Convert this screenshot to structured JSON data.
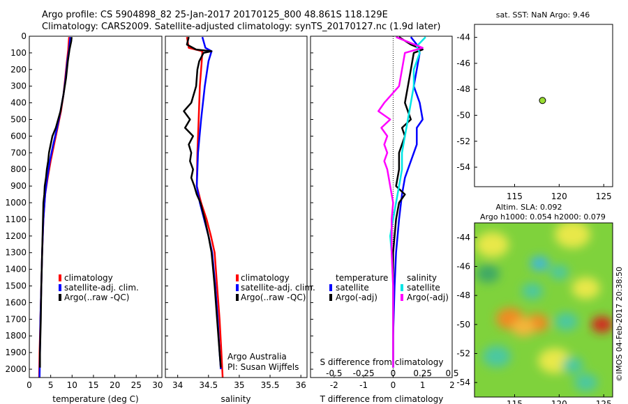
{
  "header": {
    "line1": "Argo profile: CS 5904898_82 25-Jan-2017 20170125_800 48.861S 118.129E",
    "line2": "Climatology: CARS2009. Satellite-adjusted climatology: synTS_20170127.nc (1.9d later)"
  },
  "colors": {
    "climatology": "#ff0000",
    "satellite": "#0000ff",
    "argo": "#000000",
    "sat_temp": "#00e5e5",
    "argo_sal": "#ff00ff",
    "dot": "#99dd33"
  },
  "chart_data": [
    {
      "id": "temperature",
      "type": "line",
      "xlabel": "temperature (deg C)",
      "ylabel": "",
      "xlim": [
        0,
        31
      ],
      "ylim": [
        2050,
        0
      ],
      "xticks": [
        "0",
        "5",
        "10",
        "15",
        "20",
        "25",
        "30"
      ],
      "yticks": [
        "0",
        "100",
        "200",
        "300",
        "400",
        "500",
        "600",
        "700",
        "800",
        "900",
        "1000",
        "1100",
        "1200",
        "1300",
        "1400",
        "1500",
        "1600",
        "1700",
        "1800",
        "1900",
        "2000"
      ],
      "legend": [
        "climatology",
        "satellite-adj. clim.",
        "Argo(..raw -QC)"
      ],
      "series": [
        {
          "name": "climatology",
          "color": "#ff0000",
          "points": [
            [
              9.3,
              5
            ],
            [
              9.1,
              80
            ],
            [
              8.8,
              150
            ],
            [
              8.4,
              250
            ],
            [
              8.0,
              350
            ],
            [
              7.4,
              450
            ],
            [
              6.6,
              550
            ],
            [
              5.8,
              650
            ],
            [
              5.0,
              750
            ],
            [
              4.3,
              850
            ],
            [
              3.7,
              950
            ],
            [
              3.3,
              1100
            ],
            [
              3.0,
              1300
            ],
            [
              2.8,
              1500
            ],
            [
              2.6,
              1700
            ],
            [
              2.4,
              1900
            ],
            [
              2.3,
              2050
            ]
          ]
        },
        {
          "name": "satellite-adj. clim.",
          "color": "#0000ff",
          "points": [
            [
              9.6,
              5
            ],
            [
              9.3,
              80
            ],
            [
              8.9,
              150
            ],
            [
              8.5,
              250
            ],
            [
              8.0,
              350
            ],
            [
              7.3,
              450
            ],
            [
              6.5,
              550
            ],
            [
              5.6,
              650
            ],
            [
              4.8,
              750
            ],
            [
              4.2,
              850
            ],
            [
              3.7,
              950
            ],
            [
              3.3,
              1100
            ],
            [
              3.0,
              1300
            ],
            [
              2.8,
              1500
            ],
            [
              2.6,
              1700
            ],
            [
              2.5,
              1900
            ],
            [
              2.4,
              2050
            ]
          ]
        },
        {
          "name": "Argo(..raw -QC)",
          "color": "#000000",
          "points": [
            [
              9.9,
              5
            ],
            [
              9.8,
              30
            ],
            [
              9.4,
              80
            ],
            [
              9.0,
              150
            ],
            [
              8.6,
              250
            ],
            [
              8.0,
              350
            ],
            [
              7.3,
              450
            ],
            [
              6.2,
              550
            ],
            [
              5.4,
              600
            ],
            [
              5.0,
              650
            ],
            [
              4.6,
              700
            ],
            [
              4.4,
              750
            ],
            [
              4.1,
              800
            ],
            [
              3.9,
              850
            ],
            [
              3.6,
              900
            ],
            [
              3.5,
              950
            ],
            [
              3.3,
              1000
            ],
            [
              3.2,
              1100
            ],
            [
              3.0,
              1300
            ],
            [
              2.8,
              1500
            ],
            [
              2.7,
              1700
            ],
            [
              2.5,
              1900
            ],
            [
              2.5,
              1990
            ]
          ]
        }
      ]
    },
    {
      "id": "salinity",
      "type": "line",
      "xlabel": "salinity",
      "ylabel": "",
      "xlim": [
        33.8,
        36.1
      ],
      "ylim": [
        2050,
        0
      ],
      "xticks": [
        "34",
        "34.5",
        "35",
        "35.5",
        "36"
      ],
      "legend": [
        "climatology",
        "satellite-adj. clim.",
        "Argo(..raw -QC)"
      ],
      "annotation": [
        "Argo Australia",
        "PI: Susan Wijffels"
      ],
      "series": [
        {
          "name": "climatology",
          "color": "#ff0000",
          "points": [
            [
              34.15,
              5
            ],
            [
              34.18,
              70
            ],
            [
              34.4,
              90
            ],
            [
              34.39,
              150
            ],
            [
              34.36,
              300
            ],
            [
              34.34,
              500
            ],
            [
              34.32,
              700
            ],
            [
              34.31,
              900
            ],
            [
              34.38,
              1000
            ],
            [
              34.47,
              1100
            ],
            [
              34.54,
              1200
            ],
            [
              34.6,
              1300
            ],
            [
              34.64,
              1500
            ],
            [
              34.68,
              1700
            ],
            [
              34.71,
              1900
            ],
            [
              34.73,
              2050
            ]
          ]
        },
        {
          "name": "satellite-adj. clim.",
          "color": "#0000ff",
          "points": [
            [
              34.4,
              5
            ],
            [
              34.45,
              70
            ],
            [
              34.55,
              90
            ],
            [
              34.5,
              150
            ],
            [
              34.44,
              300
            ],
            [
              34.38,
              500
            ],
            [
              34.33,
              700
            ],
            [
              34.31,
              900
            ],
            [
              34.36,
              1000
            ],
            [
              34.43,
              1100
            ],
            [
              34.5,
              1200
            ],
            [
              34.56,
              1300
            ],
            [
              34.61,
              1500
            ],
            [
              34.65,
              1700
            ],
            [
              34.68,
              1900
            ],
            [
              34.7,
              2000
            ]
          ]
        },
        {
          "name": "Argo(..raw -QC)",
          "color": "#000000",
          "points": [
            [
              34.18,
              5
            ],
            [
              34.15,
              50
            ],
            [
              34.3,
              80
            ],
            [
              34.55,
              90
            ],
            [
              34.42,
              100
            ],
            [
              34.35,
              150
            ],
            [
              34.32,
              200
            ],
            [
              34.3,
              300
            ],
            [
              34.22,
              400
            ],
            [
              34.1,
              450
            ],
            [
              34.2,
              500
            ],
            [
              34.12,
              550
            ],
            [
              34.25,
              600
            ],
            [
              34.18,
              650
            ],
            [
              34.22,
              700
            ],
            [
              34.2,
              750
            ],
            [
              34.25,
              800
            ],
            [
              34.22,
              850
            ],
            [
              34.27,
              900
            ],
            [
              34.31,
              950
            ],
            [
              34.37,
              1000
            ],
            [
              34.44,
              1100
            ],
            [
              34.5,
              1200
            ],
            [
              34.55,
              1300
            ],
            [
              34.6,
              1500
            ],
            [
              34.64,
              1700
            ],
            [
              34.68,
              1900
            ],
            [
              34.7,
              1990
            ]
          ]
        }
      ]
    },
    {
      "id": "difference",
      "type": "line",
      "xlabel": "T difference from climatology",
      "xlabel2": "S difference from climatology",
      "xlim": [
        -2.8,
        2.0
      ],
      "x2lim": [
        -0.7,
        0.5
      ],
      "ylim": [
        2050,
        0
      ],
      "xticks": [
        "-2",
        "-1",
        "0",
        "1",
        "2"
      ],
      "x2ticks": [
        "-0.5",
        "-0.25",
        "0",
        "0.25",
        "0.5"
      ],
      "legend_groups": [
        {
          "title": "temperature",
          "entries": [
            "satellite",
            "Argo(-adj)"
          ]
        },
        {
          "title": "salinity",
          "entries": [
            "satellite",
            "Argo(-adj)"
          ]
        }
      ],
      "series": [
        {
          "name": "temperature satellite",
          "color": "#0000ff",
          "points": [
            [
              0.6,
              5
            ],
            [
              0.8,
              50
            ],
            [
              0.9,
              100
            ],
            [
              0.8,
              200
            ],
            [
              0.7,
              300
            ],
            [
              0.9,
              400
            ],
            [
              1.0,
              500
            ],
            [
              0.8,
              550
            ],
            [
              0.8,
              650
            ],
            [
              0.6,
              750
            ],
            [
              0.4,
              850
            ],
            [
              0.3,
              950
            ],
            [
              0.2,
              1100
            ],
            [
              0.1,
              1300
            ],
            [
              0.05,
              1500
            ],
            [
              0.0,
              1800
            ],
            [
              0.0,
              1990
            ]
          ]
        },
        {
          "name": "temperature Argo(-adj)",
          "color": "#000000",
          "points": [
            [
              0.2,
              5
            ],
            [
              0.6,
              50
            ],
            [
              1.0,
              80
            ],
            [
              0.7,
              100
            ],
            [
              0.6,
              200
            ],
            [
              0.5,
              300
            ],
            [
              0.4,
              400
            ],
            [
              0.6,
              500
            ],
            [
              0.3,
              550
            ],
            [
              0.4,
              600
            ],
            [
              0.2,
              700
            ],
            [
              0.2,
              800
            ],
            [
              0.1,
              900
            ],
            [
              0.4,
              950
            ],
            [
              0.2,
              1000
            ],
            [
              0.1,
              1100
            ],
            [
              0.0,
              1300
            ],
            [
              0.0,
              1600
            ],
            [
              0.0,
              1990
            ]
          ]
        },
        {
          "name": "salinity satellite",
          "color": "#00e5e5",
          "points": [
            [
              1.1,
              5
            ],
            [
              0.8,
              60
            ],
            [
              0.9,
              100
            ],
            [
              0.7,
              200
            ],
            [
              0.7,
              300
            ],
            [
              0.6,
              400
            ],
            [
              0.5,
              500
            ],
            [
              0.4,
              600
            ],
            [
              0.3,
              700
            ],
            [
              0.3,
              800
            ],
            [
              0.2,
              900
            ],
            [
              0.1,
              1000
            ],
            [
              0.0,
              1100
            ],
            [
              -0.1,
              1200
            ],
            [
              -0.05,
              1300
            ],
            [
              0.0,
              1500
            ],
            [
              0.0,
              1800
            ],
            [
              0.0,
              1990
            ]
          ]
        },
        {
          "name": "salinity Argo(-adj)",
          "color": "#ff00ff",
          "points": [
            [
              0.1,
              5
            ],
            [
              1.0,
              70
            ],
            [
              0.4,
              100
            ],
            [
              0.3,
              200
            ],
            [
              0.2,
              300
            ],
            [
              -0.3,
              400
            ],
            [
              -0.5,
              450
            ],
            [
              -0.1,
              500
            ],
            [
              -0.4,
              550
            ],
            [
              -0.2,
              600
            ],
            [
              -0.3,
              650
            ],
            [
              -0.2,
              700
            ],
            [
              -0.3,
              750
            ],
            [
              -0.2,
              800
            ],
            [
              -0.1,
              900
            ],
            [
              0.0,
              1000
            ],
            [
              -0.05,
              1100
            ],
            [
              -0.05,
              1300
            ],
            [
              0.0,
              1500
            ],
            [
              0.0,
              1990
            ]
          ]
        }
      ]
    },
    {
      "id": "location",
      "type": "scatter",
      "title": "sat. SST: NaN Argo: 9.46",
      "xlim": [
        110.5,
        126
      ],
      "ylim": [
        -55.5,
        -43
      ],
      "xticks": [
        "115",
        "120",
        "125"
      ],
      "yticks": [
        "-44",
        "-46",
        "-48",
        "-50",
        "-52",
        "-54"
      ],
      "points": [
        [
          118.129,
          -48.861
        ]
      ]
    },
    {
      "id": "sla",
      "type": "heatmap",
      "title": "Altim. SLA: 0.092",
      "subtitle": "Argo h1000: 0.054 h2000: 0.079",
      "xlim": [
        110.5,
        126
      ],
      "ylim": [
        -55,
        -43
      ],
      "xticks": [
        "115",
        "120",
        "125"
      ],
      "yticks": [
        "-44",
        "-46",
        "-48",
        "-50",
        "-52",
        "-54"
      ],
      "side_label": "©IMOS 04-Feb-2017 20:38:50",
      "blobs": [
        {
          "lon": 114.5,
          "lat": -49.6,
          "value": 0.9,
          "size": 1.2
        },
        {
          "lon": 117.5,
          "lat": -49.9,
          "value": 0.9,
          "size": 1.0
        },
        {
          "lon": 116.0,
          "lat": -50.2,
          "value": 0.7,
          "size": 1.0
        },
        {
          "lon": 124.8,
          "lat": -50.0,
          "value": 1.0,
          "size": 0.9
        },
        {
          "lon": 112.5,
          "lat": -44.5,
          "value": 0.3,
          "size": 1.4
        },
        {
          "lon": 121.5,
          "lat": -43.8,
          "value": 0.3,
          "size": 1.5
        },
        {
          "lon": 119.5,
          "lat": -52.5,
          "value": 0.3,
          "size": 1.4
        },
        {
          "lon": 123.0,
          "lat": -47.5,
          "value": 0.25,
          "size": 1.2
        },
        {
          "lon": 117.8,
          "lat": -45.8,
          "value": -0.8,
          "size": 0.8
        },
        {
          "lon": 120.0,
          "lat": -46.4,
          "value": -0.6,
          "size": 0.8
        },
        {
          "lon": 117.0,
          "lat": -47.7,
          "value": -0.5,
          "size": 0.9
        },
        {
          "lon": 113.0,
          "lat": -52.2,
          "value": -0.5,
          "size": 1.2
        },
        {
          "lon": 120.8,
          "lat": -49.8,
          "value": -0.6,
          "size": 1.0
        },
        {
          "lon": 121.5,
          "lat": -52.8,
          "value": -0.6,
          "size": 0.9
        },
        {
          "lon": 123.0,
          "lat": -54.0,
          "value": -0.5,
          "size": 1.0
        },
        {
          "lon": 112.0,
          "lat": -46.5,
          "value": -0.35,
          "size": 1.0
        }
      ]
    }
  ]
}
